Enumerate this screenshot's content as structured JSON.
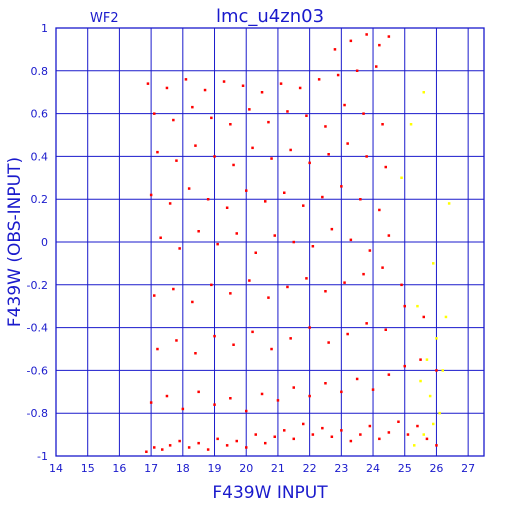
{
  "chart_data": {
    "type": "scatter",
    "title": "lmc_u4zn03",
    "subtitle": "WF2",
    "xlabel": "F439W INPUT",
    "ylabel": "F439W (OBS-INPUT)",
    "xlim": [
      14,
      27.5
    ],
    "ylim": [
      -1,
      1
    ],
    "xticks": [
      "14",
      "15",
      "16",
      "17",
      "18",
      "19",
      "20",
      "21",
      "22",
      "23",
      "24",
      "25",
      "26",
      "27"
    ],
    "yticks": [
      "1",
      "0.8",
      "0.6",
      "0.4",
      "0.2",
      "0",
      "-0.2",
      "-0.4",
      "-0.6",
      "-0.8",
      "-1"
    ],
    "grid": true,
    "colors": {
      "frame": "#1a1acc",
      "series_main": "#ff0000",
      "series_secondary": "#ffff00"
    },
    "series": [
      {
        "color": "#ff0000",
        "x": [
          16.85,
          17.1,
          17.35,
          17.6,
          17.9,
          18.2,
          18.5,
          18.8,
          19.1,
          19.4,
          19.7,
          20.0,
          20.3,
          20.6,
          20.9,
          21.2,
          21.5,
          21.8,
          22.1,
          22.4,
          22.7,
          23.0,
          23.3,
          23.6,
          23.9,
          24.2,
          24.5,
          24.8,
          25.1,
          25.4,
          25.7,
          26.0,
          17.0,
          17.5,
          18.0,
          18.5,
          19.0,
          19.5,
          20.0,
          20.5,
          21.0,
          21.5,
          22.0,
          22.5,
          23.0,
          23.5,
          24.0,
          24.5,
          25.0,
          25.5,
          26.0,
          17.2,
          17.8,
          18.4,
          19.0,
          19.6,
          20.2,
          20.8,
          21.4,
          22.0,
          22.6,
          23.2,
          23.8,
          24.4,
          25.0,
          25.6,
          17.1,
          17.7,
          18.3,
          18.9,
          19.5,
          20.1,
          20.7,
          21.3,
          21.9,
          22.5,
          23.1,
          23.7,
          24.3,
          24.9,
          17.3,
          17.9,
          18.5,
          19.1,
          19.7,
          20.3,
          20.9,
          21.5,
          22.1,
          22.7,
          23.3,
          23.9,
          24.5,
          17.0,
          17.6,
          18.2,
          18.8,
          19.4,
          20.0,
          20.6,
          21.2,
          21.8,
          22.4,
          23.0,
          23.6,
          24.2,
          17.2,
          17.8,
          18.4,
          19.0,
          19.6,
          20.2,
          20.8,
          21.4,
          22.0,
          22.6,
          23.2,
          23.8,
          24.4,
          17.1,
          17.7,
          18.3,
          18.9,
          19.5,
          20.1,
          20.7,
          21.3,
          21.9,
          22.5,
          23.1,
          23.7,
          24.3,
          16.9,
          17.5,
          18.1,
          18.7,
          19.3,
          19.9,
          20.5,
          21.1,
          21.7,
          22.3,
          22.9,
          23.5,
          24.1,
          22.8,
          23.3,
          23.8,
          24.2,
          24.5
        ],
        "y": [
          -0.98,
          -0.96,
          -0.97,
          -0.95,
          -0.93,
          -0.96,
          -0.94,
          -0.97,
          -0.92,
          -0.95,
          -0.93,
          -0.96,
          -0.9,
          -0.94,
          -0.91,
          -0.88,
          -0.92,
          -0.85,
          -0.9,
          -0.87,
          -0.91,
          -0.88,
          -0.93,
          -0.9,
          -0.86,
          -0.92,
          -0.89,
          -0.84,
          -0.9,
          -0.86,
          -0.92,
          -0.95,
          -0.75,
          -0.72,
          -0.78,
          -0.7,
          -0.76,
          -0.73,
          -0.79,
          -0.71,
          -0.74,
          -0.68,
          -0.72,
          -0.66,
          -0.7,
          -0.64,
          -0.69,
          -0.62,
          -0.58,
          -0.55,
          -0.6,
          -0.5,
          -0.46,
          -0.52,
          -0.44,
          -0.48,
          -0.42,
          -0.5,
          -0.45,
          -0.4,
          -0.47,
          -0.43,
          -0.38,
          -0.41,
          -0.3,
          -0.35,
          -0.25,
          -0.22,
          -0.28,
          -0.2,
          -0.24,
          -0.18,
          -0.26,
          -0.21,
          -0.17,
          -0.23,
          -0.19,
          -0.15,
          -0.12,
          -0.2,
          0.02,
          -0.03,
          0.05,
          -0.01,
          0.04,
          -0.05,
          0.03,
          0.0,
          -0.02,
          0.06,
          0.01,
          -0.04,
          0.03,
          0.22,
          0.18,
          0.25,
          0.2,
          0.16,
          0.24,
          0.19,
          0.23,
          0.17,
          0.21,
          0.26,
          0.2,
          0.15,
          0.42,
          0.38,
          0.45,
          0.4,
          0.36,
          0.44,
          0.39,
          0.43,
          0.37,
          0.41,
          0.46,
          0.4,
          0.35,
          0.6,
          0.57,
          0.63,
          0.58,
          0.55,
          0.62,
          0.56,
          0.61,
          0.59,
          0.54,
          0.64,
          0.6,
          0.55,
          0.74,
          0.72,
          0.76,
          0.71,
          0.75,
          0.73,
          0.7,
          0.74,
          0.72,
          0.76,
          0.78,
          0.8,
          0.82,
          0.9,
          0.94,
          0.97,
          0.92,
          0.96
        ]
      },
      {
        "color": "#ffff00",
        "x": [
          25.3,
          25.6,
          25.9,
          26.1,
          25.8,
          25.5,
          26.2,
          25.7,
          26.0,
          25.4,
          26.3,
          25.9,
          24.9,
          25.2,
          26.4,
          25.6
        ],
        "y": [
          -0.95,
          -0.9,
          -0.85,
          -0.8,
          -0.72,
          -0.65,
          -0.6,
          -0.55,
          -0.45,
          -0.3,
          -0.35,
          -0.1,
          0.3,
          0.55,
          0.18,
          0.7
        ]
      }
    ]
  }
}
